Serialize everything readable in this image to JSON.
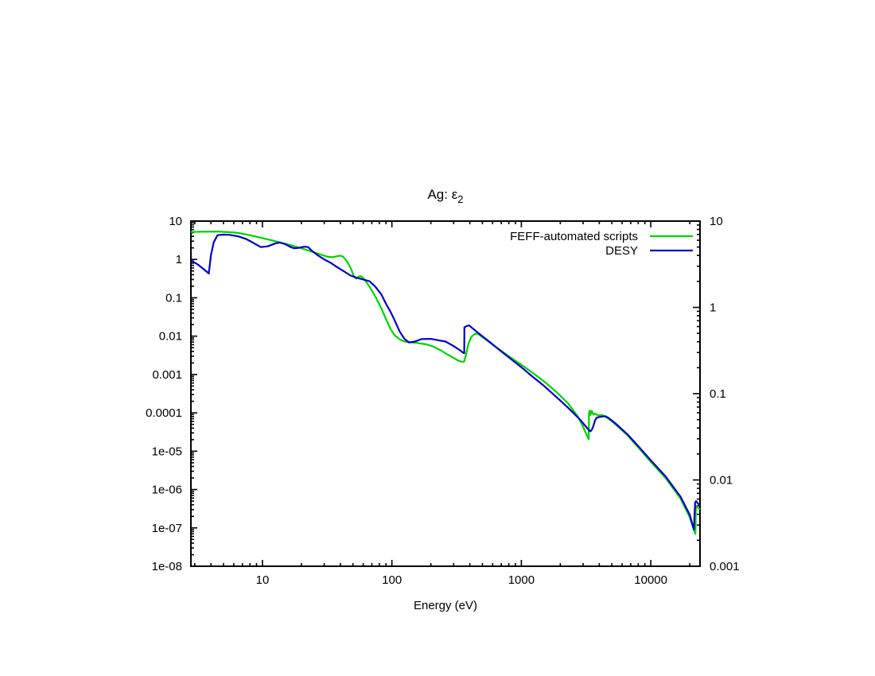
{
  "window": {
    "background": "#ffffff",
    "text_color": "#000000",
    "axis_color": "#000000"
  },
  "chart_data": {
    "type": "line",
    "title": {
      "text": "Ag: ε",
      "subscript": "2"
    },
    "xlabel": "Energy (eV)",
    "grid": false,
    "legend_position": "top-right-inside",
    "x_axis": {
      "scale": "log",
      "min": 2.8,
      "max": 24000,
      "ticks": [
        {
          "v": 10,
          "label": "10"
        },
        {
          "v": 100,
          "label": "100"
        },
        {
          "v": 1000,
          "label": "1000"
        },
        {
          "v": 10000,
          "label": "10000"
        }
      ]
    },
    "y_axis_left": {
      "scale": "log",
      "min": 1e-08,
      "max": 10,
      "ticks": [
        {
          "v": 10,
          "label": "10"
        },
        {
          "v": 1,
          "label": "1"
        },
        {
          "v": 0.1,
          "label": "0.1"
        },
        {
          "v": 0.01,
          "label": "0.01"
        },
        {
          "v": 0.001,
          "label": "0.001"
        },
        {
          "v": 0.0001,
          "label": "0.0001"
        },
        {
          "v": 1e-05,
          "label": "1e-05"
        },
        {
          "v": 1e-06,
          "label": "1e-06"
        },
        {
          "v": 1e-07,
          "label": "1e-07"
        },
        {
          "v": 1e-08,
          "label": "1e-08"
        }
      ]
    },
    "y_axis_right": {
      "scale": "log",
      "min": 0.001,
      "max": 10,
      "ticks": [
        {
          "v": 10,
          "label": "10"
        },
        {
          "v": 1,
          "label": "1"
        },
        {
          "v": 0.1,
          "label": "0.1"
        },
        {
          "v": 0.01,
          "label": "0.01"
        },
        {
          "v": 0.001,
          "label": "0.001"
        }
      ]
    },
    "series": [
      {
        "name": "FEFF-automated scripts",
        "color": "#00d000",
        "points": [
          [
            2.8,
            5.2
          ],
          [
            3.5,
            5.3
          ],
          [
            4.5,
            5.35
          ],
          [
            5.5,
            5.15
          ],
          [
            6.5,
            4.9
          ],
          [
            8,
            4.3
          ],
          [
            10,
            3.6
          ],
          [
            12,
            3.1
          ],
          [
            14.5,
            2.65
          ],
          [
            17,
            2.3
          ],
          [
            20,
            1.95
          ],
          [
            24,
            1.6
          ],
          [
            28,
            1.35
          ],
          [
            32,
            1.17
          ],
          [
            35,
            1.15
          ],
          [
            38,
            1.22
          ],
          [
            40,
            1.26
          ],
          [
            42,
            1.18
          ],
          [
            44,
            0.98
          ],
          [
            46,
            0.78
          ],
          [
            48,
            0.6
          ],
          [
            50,
            0.42
          ],
          [
            51.5,
            0.34
          ],
          [
            53,
            0.315
          ],
          [
            55,
            0.35
          ],
          [
            57,
            0.37
          ],
          [
            60,
            0.33
          ],
          [
            64,
            0.25
          ],
          [
            70,
            0.155
          ],
          [
            76,
            0.095
          ],
          [
            83,
            0.052
          ],
          [
            90,
            0.028
          ],
          [
            97,
            0.016
          ],
          [
            105,
            0.0105
          ],
          [
            115,
            0.0082
          ],
          [
            125,
            0.0072
          ],
          [
            140,
            0.0069
          ],
          [
            160,
            0.0066
          ],
          [
            185,
            0.0061
          ],
          [
            210,
            0.0053
          ],
          [
            240,
            0.0042
          ],
          [
            270,
            0.0033
          ],
          [
            300,
            0.0027
          ],
          [
            325,
            0.0023
          ],
          [
            350,
            0.00215
          ],
          [
            362,
            0.0022
          ],
          [
            375,
            0.0035
          ],
          [
            390,
            0.0063
          ],
          [
            410,
            0.0095
          ],
          [
            435,
            0.0113
          ],
          [
            455,
            0.0117
          ],
          [
            480,
            0.0105
          ],
          [
            550,
            0.0075
          ],
          [
            650,
            0.0049
          ],
          [
            800,
            0.003
          ],
          [
            1000,
            0.0018
          ],
          [
            1250,
            0.00105
          ],
          [
            1550,
            0.0006
          ],
          [
            1900,
            0.00033
          ],
          [
            2300,
            0.000175
          ],
          [
            2700,
            8.5e-05
          ],
          [
            3000,
            4.4e-05
          ],
          [
            3200,
            2.6e-05
          ],
          [
            3320,
            2.05e-05
          ],
          [
            3330,
            0.0001
          ],
          [
            3380,
            0.000115
          ],
          [
            3420,
            8.8e-05
          ],
          [
            3500,
            0.000112
          ],
          [
            3600,
            9e-05
          ],
          [
            3700,
            9.6e-05
          ],
          [
            3900,
            8.6e-05
          ],
          [
            4200,
            8.8e-05
          ],
          [
            4450,
            7.9e-05
          ],
          [
            4700,
            7.1e-05
          ],
          [
            5300,
            5.1e-05
          ],
          [
            6000,
            3.5e-05
          ],
          [
            6640,
            2.55e-05
          ],
          [
            8000,
            1.25e-05
          ],
          [
            10000,
            5.3e-06
          ],
          [
            13000,
            2e-06
          ],
          [
            17000,
            5.8e-07
          ],
          [
            20000,
            1.9e-07
          ],
          [
            21800,
            8e-08
          ],
          [
            22100,
            7e-08
          ],
          [
            22300,
            3.8e-07
          ],
          [
            23000,
            3.4e-07
          ],
          [
            24000,
            3e-07
          ]
        ]
      },
      {
        "name": "DESY",
        "color": "#0000c0",
        "points": [
          [
            2.8,
            0.95
          ],
          [
            3.2,
            0.72
          ],
          [
            3.6,
            0.52
          ],
          [
            3.85,
            0.43
          ],
          [
            4.0,
            1.3
          ],
          [
            4.2,
            2.8
          ],
          [
            4.5,
            4.3
          ],
          [
            5.0,
            4.45
          ],
          [
            5.5,
            4.4
          ],
          [
            6.5,
            4.0
          ],
          [
            7.5,
            3.4
          ],
          [
            8.5,
            2.7
          ],
          [
            9.7,
            2.1
          ],
          [
            11,
            2.2
          ],
          [
            12.5,
            2.6
          ],
          [
            13.5,
            2.75
          ],
          [
            15,
            2.5
          ],
          [
            16.5,
            2.1
          ],
          [
            17.6,
            1.95
          ],
          [
            19,
            2.0
          ],
          [
            21,
            2.15
          ],
          [
            22.5,
            2.1
          ],
          [
            24,
            1.7
          ],
          [
            27,
            1.25
          ],
          [
            30,
            1.0
          ],
          [
            34,
            0.8
          ],
          [
            38,
            0.62
          ],
          [
            43,
            0.48
          ],
          [
            48,
            0.38
          ],
          [
            54,
            0.33
          ],
          [
            60,
            0.3
          ],
          [
            67,
            0.27
          ],
          [
            74,
            0.2
          ],
          [
            83,
            0.122
          ],
          [
            90,
            0.07
          ],
          [
            97,
            0.045
          ],
          [
            105,
            0.026
          ],
          [
            115,
            0.013
          ],
          [
            125,
            0.0085
          ],
          [
            136,
            0.0068
          ],
          [
            150,
            0.0072
          ],
          [
            170,
            0.0084
          ],
          [
            200,
            0.0085
          ],
          [
            230,
            0.0078
          ],
          [
            260,
            0.0072
          ],
          [
            300,
            0.0055
          ],
          [
            335,
            0.0043
          ],
          [
            355,
            0.0037
          ],
          [
            362,
            0.0036
          ],
          [
            363,
            0.017
          ],
          [
            380,
            0.0185
          ],
          [
            395,
            0.019
          ],
          [
            420,
            0.016
          ],
          [
            470,
            0.0117
          ],
          [
            550,
            0.0077
          ],
          [
            650,
            0.0049
          ],
          [
            800,
            0.0028
          ],
          [
            1000,
            0.00155
          ],
          [
            1200,
            0.00092
          ],
          [
            1500,
            0.0005
          ],
          [
            1860,
            0.00026
          ],
          [
            2300,
            0.000135
          ],
          [
            2860,
            6.5e-05
          ],
          [
            3150,
            4.4e-05
          ],
          [
            3340,
            3.5e-05
          ],
          [
            3420,
            3.3e-05
          ],
          [
            3500,
            3.6e-05
          ],
          [
            3600,
            4.5e-05
          ],
          [
            3700,
            6.2e-05
          ],
          [
            3800,
            7.4e-05
          ],
          [
            4000,
            7.8e-05
          ],
          [
            4450,
            8.2e-05
          ],
          [
            4700,
            7.4e-05
          ],
          [
            5300,
            5.4e-05
          ],
          [
            6000,
            3.7e-05
          ],
          [
            6640,
            2.7e-05
          ],
          [
            8000,
            1.35e-05
          ],
          [
            10000,
            5.8e-06
          ],
          [
            13000,
            2.2e-06
          ],
          [
            17000,
            6.5e-07
          ],
          [
            20000,
            2.2e-07
          ],
          [
            21500,
            9e-08
          ],
          [
            22000,
            4.6e-07
          ],
          [
            22400,
            5e-07
          ],
          [
            23300,
            4.2e-07
          ],
          [
            24000,
            3.8e-07
          ]
        ]
      }
    ]
  }
}
